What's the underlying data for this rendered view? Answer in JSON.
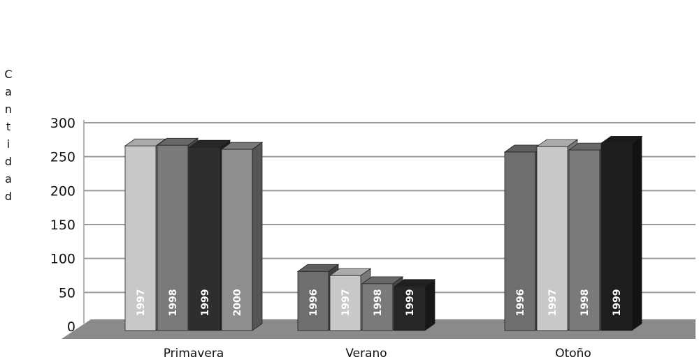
{
  "chart_data": {
    "type": "bar",
    "title": "",
    "xlabel": "",
    "ylabel": "Cantidad",
    "ylim": [
      0,
      300
    ],
    "yticks": [
      0,
      50,
      100,
      150,
      200,
      250,
      300
    ],
    "grid": true,
    "legend": "none",
    "categories": [
      "Primavera",
      "Verano",
      "Otoño"
    ],
    "groups": [
      {
        "category": "Primavera",
        "bars": [
          {
            "label": "1997",
            "value": 272,
            "color": "#c8c8c8"
          },
          {
            "label": "1998",
            "value": 273,
            "color": "#7a7a7a"
          },
          {
            "label": "1999",
            "value": 270,
            "color": "#2e2e2e"
          },
          {
            "label": "2000",
            "value": 267,
            "color": "#8e8e8e"
          }
        ]
      },
      {
        "category": "Verano",
        "bars": [
          {
            "label": "1996",
            "value": 87,
            "color": "#6e6e6e"
          },
          {
            "label": "1997",
            "value": 81,
            "color": "#c8c8c8"
          },
          {
            "label": "1998",
            "value": 69,
            "color": "#7a7a7a"
          },
          {
            "label": "1999",
            "value": 65,
            "color": "#262626"
          }
        ]
      },
      {
        "category": "Otoño",
        "bars": [
          {
            "label": "1996",
            "value": 263,
            "color": "#6e6e6e"
          },
          {
            "label": "1997",
            "value": 271,
            "color": "#c8c8c8"
          },
          {
            "label": "1998",
            "value": 266,
            "color": "#7a7a7a"
          },
          {
            "label": "1999",
            "value": 276,
            "color": "#1e1e1e"
          }
        ]
      }
    ]
  }
}
